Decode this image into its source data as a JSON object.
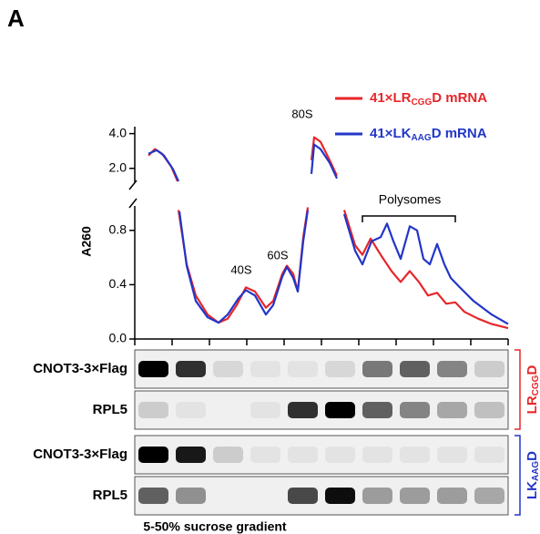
{
  "panel_label": "A",
  "chart_data": {
    "type": "line",
    "ylabel": "A260",
    "xlim": [
      0,
      41
    ],
    "ylim": [
      0,
      0.98
    ],
    "yticks": [
      {
        "value": 0,
        "label": "0.0"
      },
      0.4,
      0.8
    ],
    "ylim_upper": [
      1.2,
      4.4
    ],
    "yticks_upper": [
      {
        "value": 2,
        "label": "2.0"
      },
      {
        "value": 4,
        "label": "4.0"
      }
    ],
    "axis_break": true,
    "annotations": [
      "80S",
      "40S",
      "60S",
      "Polysomes"
    ],
    "series": [
      {
        "name": [
          "41×LR",
          "CGG",
          "D mRNA"
        ],
        "color": "#e8262a",
        "x": [
          1.5,
          2.2,
          3.0,
          4.0,
          4.7,
          4.75,
          4.8,
          5.7,
          6.7,
          8.0,
          9.2,
          10.2,
          11.2,
          12.2,
          13.2,
          14.4,
          15.2,
          16.2,
          16.7,
          17.4,
          17.9,
          18.5,
          19.0,
          19.2,
          19.4,
          19.7,
          20.4,
          21.4,
          22.2,
          22.6,
          23.0,
          24.2,
          25.0,
          25.9,
          27.0,
          28.2,
          29.2,
          30.2,
          31.2,
          32.2,
          33.2,
          34.2,
          35.2,
          36.2,
          37.7,
          39.2,
          41.0
        ],
        "values": [
          2.74,
          3.11,
          2.84,
          2.11,
          1.26,
          null,
          0.95,
          0.55,
          0.32,
          0.18,
          0.12,
          0.15,
          0.25,
          0.38,
          0.35,
          0.23,
          0.28,
          0.48,
          0.54,
          0.48,
          0.35,
          0.75,
          0.97,
          null,
          2.47,
          3.79,
          3.53,
          2.47,
          1.58,
          null,
          0.95,
          0.69,
          0.62,
          0.74,
          0.62,
          0.5,
          0.42,
          0.5,
          0.42,
          0.32,
          0.34,
          0.26,
          0.27,
          0.2,
          0.15,
          0.11,
          0.08
        ]
      },
      {
        "name": [
          "41×LK",
          "AAG",
          "D mRNA"
        ],
        "color": "#2236c8",
        "x": [
          1.5,
          2.4,
          3.2,
          4.2,
          4.8,
          4.85,
          4.9,
          5.7,
          6.7,
          8.0,
          9.2,
          10.2,
          11.4,
          12.2,
          13.2,
          14.4,
          15.2,
          16.2,
          16.7,
          17.4,
          17.9,
          18.5,
          19.0,
          19.2,
          19.4,
          19.7,
          20.4,
          21.4,
          22.2,
          22.6,
          23.0,
          24.2,
          25.0,
          26.0,
          27.0,
          27.7,
          28.4,
          29.2,
          30.2,
          31.0,
          31.7,
          32.4,
          33.2,
          34.0,
          34.7,
          35.7,
          37.2,
          39.2,
          41.0
        ],
        "values": [
          2.84,
          3.05,
          2.74,
          1.95,
          1.26,
          null,
          0.94,
          0.54,
          0.28,
          0.16,
          0.12,
          0.18,
          0.3,
          0.36,
          0.32,
          0.18,
          0.25,
          0.46,
          0.53,
          0.45,
          0.35,
          0.72,
          0.95,
          null,
          1.68,
          3.37,
          3.11,
          2.32,
          1.42,
          null,
          0.92,
          0.65,
          0.55,
          0.72,
          0.75,
          0.85,
          0.72,
          0.59,
          0.83,
          0.8,
          0.59,
          0.55,
          0.7,
          0.55,
          0.45,
          0.38,
          0.28,
          0.18,
          0.11
        ]
      }
    ]
  },
  "blots": {
    "xlabel": "5-50% sucrose gradient",
    "groups": [
      {
        "label": [
          "LR",
          "CGG",
          "D"
        ],
        "color": "#e8262a",
        "rows": [
          {
            "label": "CNOT3-3×Flag",
            "intensity": [
              1.0,
              0.8,
              0.1,
              0.05,
              0.05,
              0.1,
              0.5,
              0.6,
              0.45,
              0.15
            ]
          },
          {
            "label": "RPL5",
            "intensity": [
              0.15,
              0.05,
              0,
              0.05,
              0.8,
              1.0,
              0.6,
              0.45,
              0.3,
              0.2
            ]
          }
        ]
      },
      {
        "label": [
          "LK",
          "AAG",
          "D"
        ],
        "color": "#2236c8",
        "rows": [
          {
            "label": "CNOT3-3×Flag",
            "intensity": [
              1.0,
              0.9,
              0.15,
              0.05,
              0.05,
              0.05,
              0.05,
              0.05,
              0.05,
              0.05
            ]
          },
          {
            "label": "RPL5",
            "intensity": [
              0.6,
              0.4,
              0,
              0,
              0.7,
              0.95,
              0.35,
              0.35,
              0.35,
              0.3
            ]
          }
        ]
      }
    ]
  }
}
